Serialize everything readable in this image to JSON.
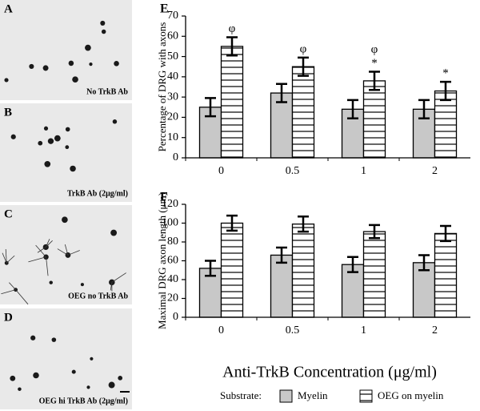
{
  "panels": [
    {
      "letter": "A",
      "caption": "No TrkB Ab"
    },
    {
      "letter": "B",
      "caption": "TrkB Ab (2μg/ml)"
    },
    {
      "letter": "C",
      "caption": "OEG no TrkB Ab"
    },
    {
      "letter": "D",
      "caption": "OEG hi TrkB Ab (2μg/ml)"
    }
  ],
  "chart_data": [
    {
      "type": "bar",
      "panel": "E",
      "ylabel": "Percentage of DRG with axons",
      "categories": [
        "0",
        "0.5",
        "1",
        "2"
      ],
      "series": [
        {
          "color": "#c8c8c8",
          "pattern": "solid",
          "values": [
            25,
            32,
            24,
            24
          ],
          "errors": [
            4.5,
            4.5,
            4.5,
            4.5
          ]
        },
        {
          "color": "#ffffff",
          "pattern": "hatch",
          "values": [
            55,
            45,
            38,
            33
          ],
          "errors": [
            4.5,
            4.5,
            4.5,
            4.5
          ],
          "annotations": [
            [
              "φ"
            ],
            [
              "φ"
            ],
            [
              "φ",
              "*"
            ],
            [
              "*"
            ]
          ]
        }
      ],
      "ylim": [
        0,
        70
      ],
      "yticks": [
        0,
        10,
        20,
        30,
        40,
        50,
        60,
        70
      ]
    },
    {
      "type": "bar",
      "panel": "F",
      "ylabel": "Maximal DRG axon length (μm)",
      "xlabel": "Anti-TrkB Concentration (μg/ml)",
      "legend_title": "Substrate:",
      "categories": [
        "0",
        "0.5",
        "1",
        "2"
      ],
      "series": [
        {
          "name": "Myelin",
          "color": "#c8c8c8",
          "pattern": "solid",
          "values": [
            52,
            66,
            56,
            58
          ],
          "errors": [
            8,
            8,
            8,
            8
          ]
        },
        {
          "name": "OEG on myelin",
          "color": "#ffffff",
          "pattern": "hatch",
          "values": [
            100,
            99,
            91,
            89
          ],
          "errors": [
            8,
            8,
            7,
            8
          ]
        }
      ],
      "ylim": [
        0,
        120
      ],
      "yticks": [
        0,
        20,
        40,
        60,
        80,
        100,
        120
      ]
    }
  ]
}
